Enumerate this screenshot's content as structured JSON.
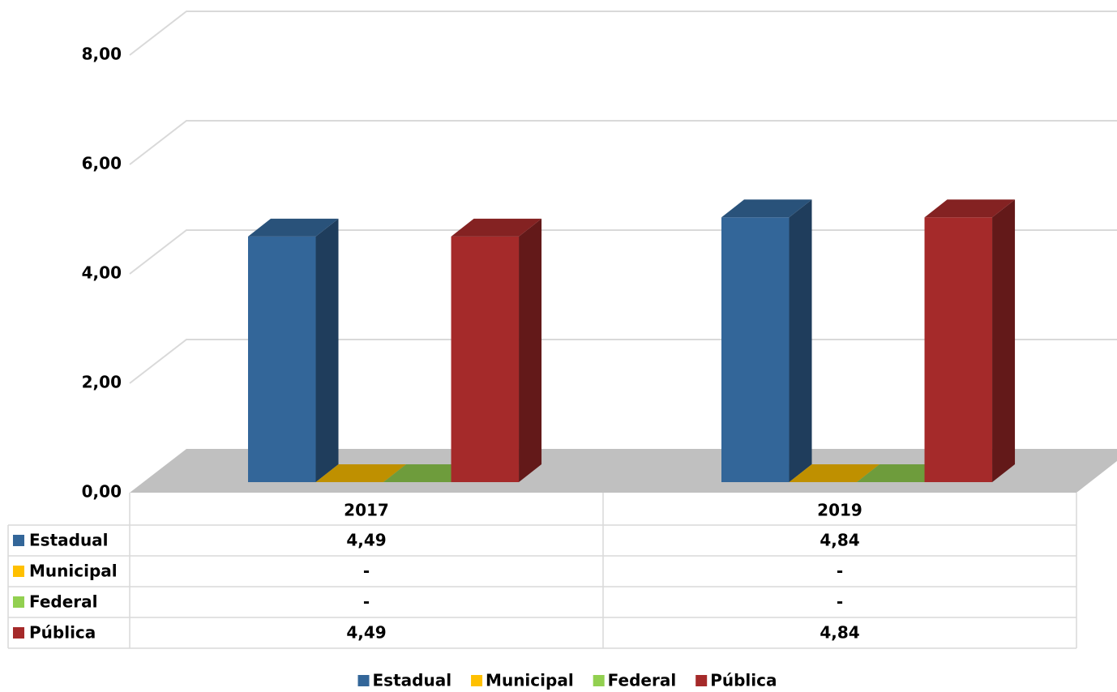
{
  "chart_data": {
    "type": "bar3d",
    "categories": [
      "2017",
      "2019"
    ],
    "series": [
      {
        "name": "Estadual",
        "color": "#336699",
        "values": [
          4.49,
          4.84
        ],
        "value_labels": [
          "4,49",
          "4,84"
        ]
      },
      {
        "name": "Municipal",
        "color": "#ffc000",
        "values": [
          0,
          0
        ],
        "value_labels": [
          "-",
          "-"
        ]
      },
      {
        "name": "Federal",
        "color": "#92d050",
        "values": [
          0,
          0
        ],
        "value_labels": [
          "-",
          "-"
        ]
      },
      {
        "name": "Pública",
        "color": "#a52a2a",
        "values": [
          4.49,
          4.84
        ],
        "value_labels": [
          "4,49",
          "4,84"
        ]
      }
    ],
    "ylim": [
      0,
      8
    ],
    "yticks": [
      {
        "value": 0,
        "label": "0,00"
      },
      {
        "value": 2,
        "label": "2,00"
      },
      {
        "value": 4,
        "label": "4,00"
      },
      {
        "value": 6,
        "label": "6,00"
      },
      {
        "value": 8,
        "label": "8,00"
      }
    ],
    "grid": true,
    "data_table": true,
    "legend": "bottom"
  }
}
